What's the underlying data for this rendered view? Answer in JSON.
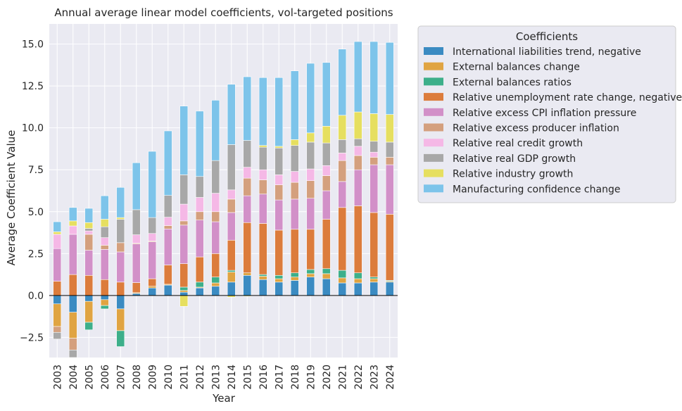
{
  "chart_data": {
    "type": "bar",
    "stacked": true,
    "title": "Annual average linear model coefficients, vol-targeted positions",
    "xlabel": "Year",
    "ylabel": "Average Coefficient Value",
    "ylim": [
      -3.7,
      16.2
    ],
    "yticks": [
      -2.5,
      0.0,
      2.5,
      5.0,
      7.5,
      10.0,
      12.5,
      15.0
    ],
    "ytick_labels": [
      "−2.5",
      "0.0",
      "2.5",
      "5.0",
      "7.5",
      "10.0",
      "12.5",
      "15.0"
    ],
    "grid": true,
    "legend_title": "Coefficients",
    "legend_position": "outside right, top",
    "categories": [
      "2003",
      "2004",
      "2005",
      "2006",
      "2007",
      "2008",
      "2009",
      "2010",
      "2011",
      "2012",
      "2013",
      "2014",
      "2015",
      "2016",
      "2017",
      "2018",
      "2019",
      "2020",
      "2021",
      "2022",
      "2023",
      "2024"
    ],
    "series": [
      {
        "name": "International liabilities trend, negative",
        "color": "#3b8bc2",
        "values": [
          -0.5,
          -1.0,
          -0.35,
          -0.25,
          -0.8,
          0.12,
          0.45,
          0.62,
          0.2,
          0.45,
          0.55,
          0.8,
          1.2,
          0.95,
          0.8,
          0.9,
          1.1,
          1.0,
          0.75,
          0.75,
          0.8,
          0.8
        ]
      },
      {
        "name": "External balances change",
        "color": "#e0a442",
        "values": [
          -1.35,
          -1.55,
          -1.25,
          -0.35,
          -1.3,
          0.05,
          0.1,
          0.05,
          0.1,
          0.05,
          0.2,
          0.6,
          0.15,
          0.2,
          0.2,
          0.2,
          0.2,
          0.3,
          0.3,
          0.25,
          0.2,
          0.05
        ]
      },
      {
        "name": "External balances ratios",
        "color": "#3daf8a",
        "values": [
          0.0,
          0.0,
          -0.45,
          -0.2,
          -0.95,
          0.0,
          0.0,
          0.0,
          0.2,
          0.3,
          0.35,
          0.1,
          0.0,
          0.1,
          0.2,
          0.25,
          0.25,
          0.3,
          0.45,
          0.35,
          0.1,
          0.05
        ]
      },
      {
        "name": "Relative unemployment rate change, negative",
        "color": "#dc7c3c",
        "values": [
          0.85,
          1.25,
          1.2,
          0.95,
          0.8,
          0.6,
          0.45,
          1.15,
          1.4,
          1.5,
          1.4,
          1.8,
          3.0,
          3.05,
          2.7,
          2.6,
          2.4,
          2.95,
          3.75,
          4.0,
          3.85,
          3.95
        ]
      },
      {
        "name": "Relative excess CPI inflation pressure",
        "color": "#d290c8",
        "values": [
          1.95,
          2.4,
          1.5,
          1.8,
          1.8,
          2.3,
          2.2,
          2.15,
          2.3,
          2.2,
          1.9,
          1.65,
          1.6,
          1.75,
          1.8,
          1.8,
          1.85,
          1.7,
          1.55,
          2.15,
          2.85,
          2.95
        ]
      },
      {
        "name": "Relative excess producer inflation",
        "color": "#d4a07e",
        "values": [
          -0.35,
          -0.7,
          0.95,
          0.25,
          0.55,
          0.05,
          0.05,
          0.2,
          0.25,
          0.5,
          0.6,
          0.8,
          1.05,
          0.85,
          0.9,
          1.0,
          1.05,
          0.9,
          1.25,
          0.85,
          0.45,
          0.45
        ]
      },
      {
        "name": "Relative real credit growth",
        "color": "#f5b8e6",
        "values": [
          0.85,
          0.5,
          0.2,
          0.45,
          0.0,
          0.5,
          0.45,
          0.5,
          1.0,
          0.85,
          1.1,
          0.55,
          0.65,
          0.6,
          0.6,
          0.65,
          0.7,
          0.6,
          0.45,
          0.55,
          0.3,
          0.0
        ]
      },
      {
        "name": "Relative real GDP growth",
        "color": "#a8a8a8",
        "values": [
          -0.4,
          -0.45,
          0.15,
          0.65,
          1.4,
          1.5,
          0.95,
          1.3,
          1.75,
          1.25,
          1.95,
          2.7,
          1.6,
          1.35,
          1.6,
          1.55,
          1.6,
          1.35,
          0.8,
          0.45,
          0.65,
          0.9
        ]
      },
      {
        "name": "Relative industry growth",
        "color": "#e6df60",
        "values": [
          0.15,
          0.3,
          0.35,
          0.45,
          0.1,
          0.0,
          0.0,
          0.0,
          -0.65,
          0.0,
          0.0,
          -0.1,
          -0.05,
          0.1,
          0.1,
          0.35,
          0.55,
          1.0,
          1.45,
          1.6,
          1.65,
          1.65
        ]
      },
      {
        "name": "Manufacturing confidence change",
        "color": "#7dc4ea",
        "values": [
          0.6,
          0.8,
          0.85,
          1.4,
          1.8,
          2.8,
          3.95,
          3.85,
          4.1,
          3.9,
          3.6,
          3.6,
          3.8,
          4.05,
          4.1,
          4.1,
          4.15,
          3.8,
          3.95,
          4.2,
          4.3,
          4.3
        ]
      }
    ]
  }
}
